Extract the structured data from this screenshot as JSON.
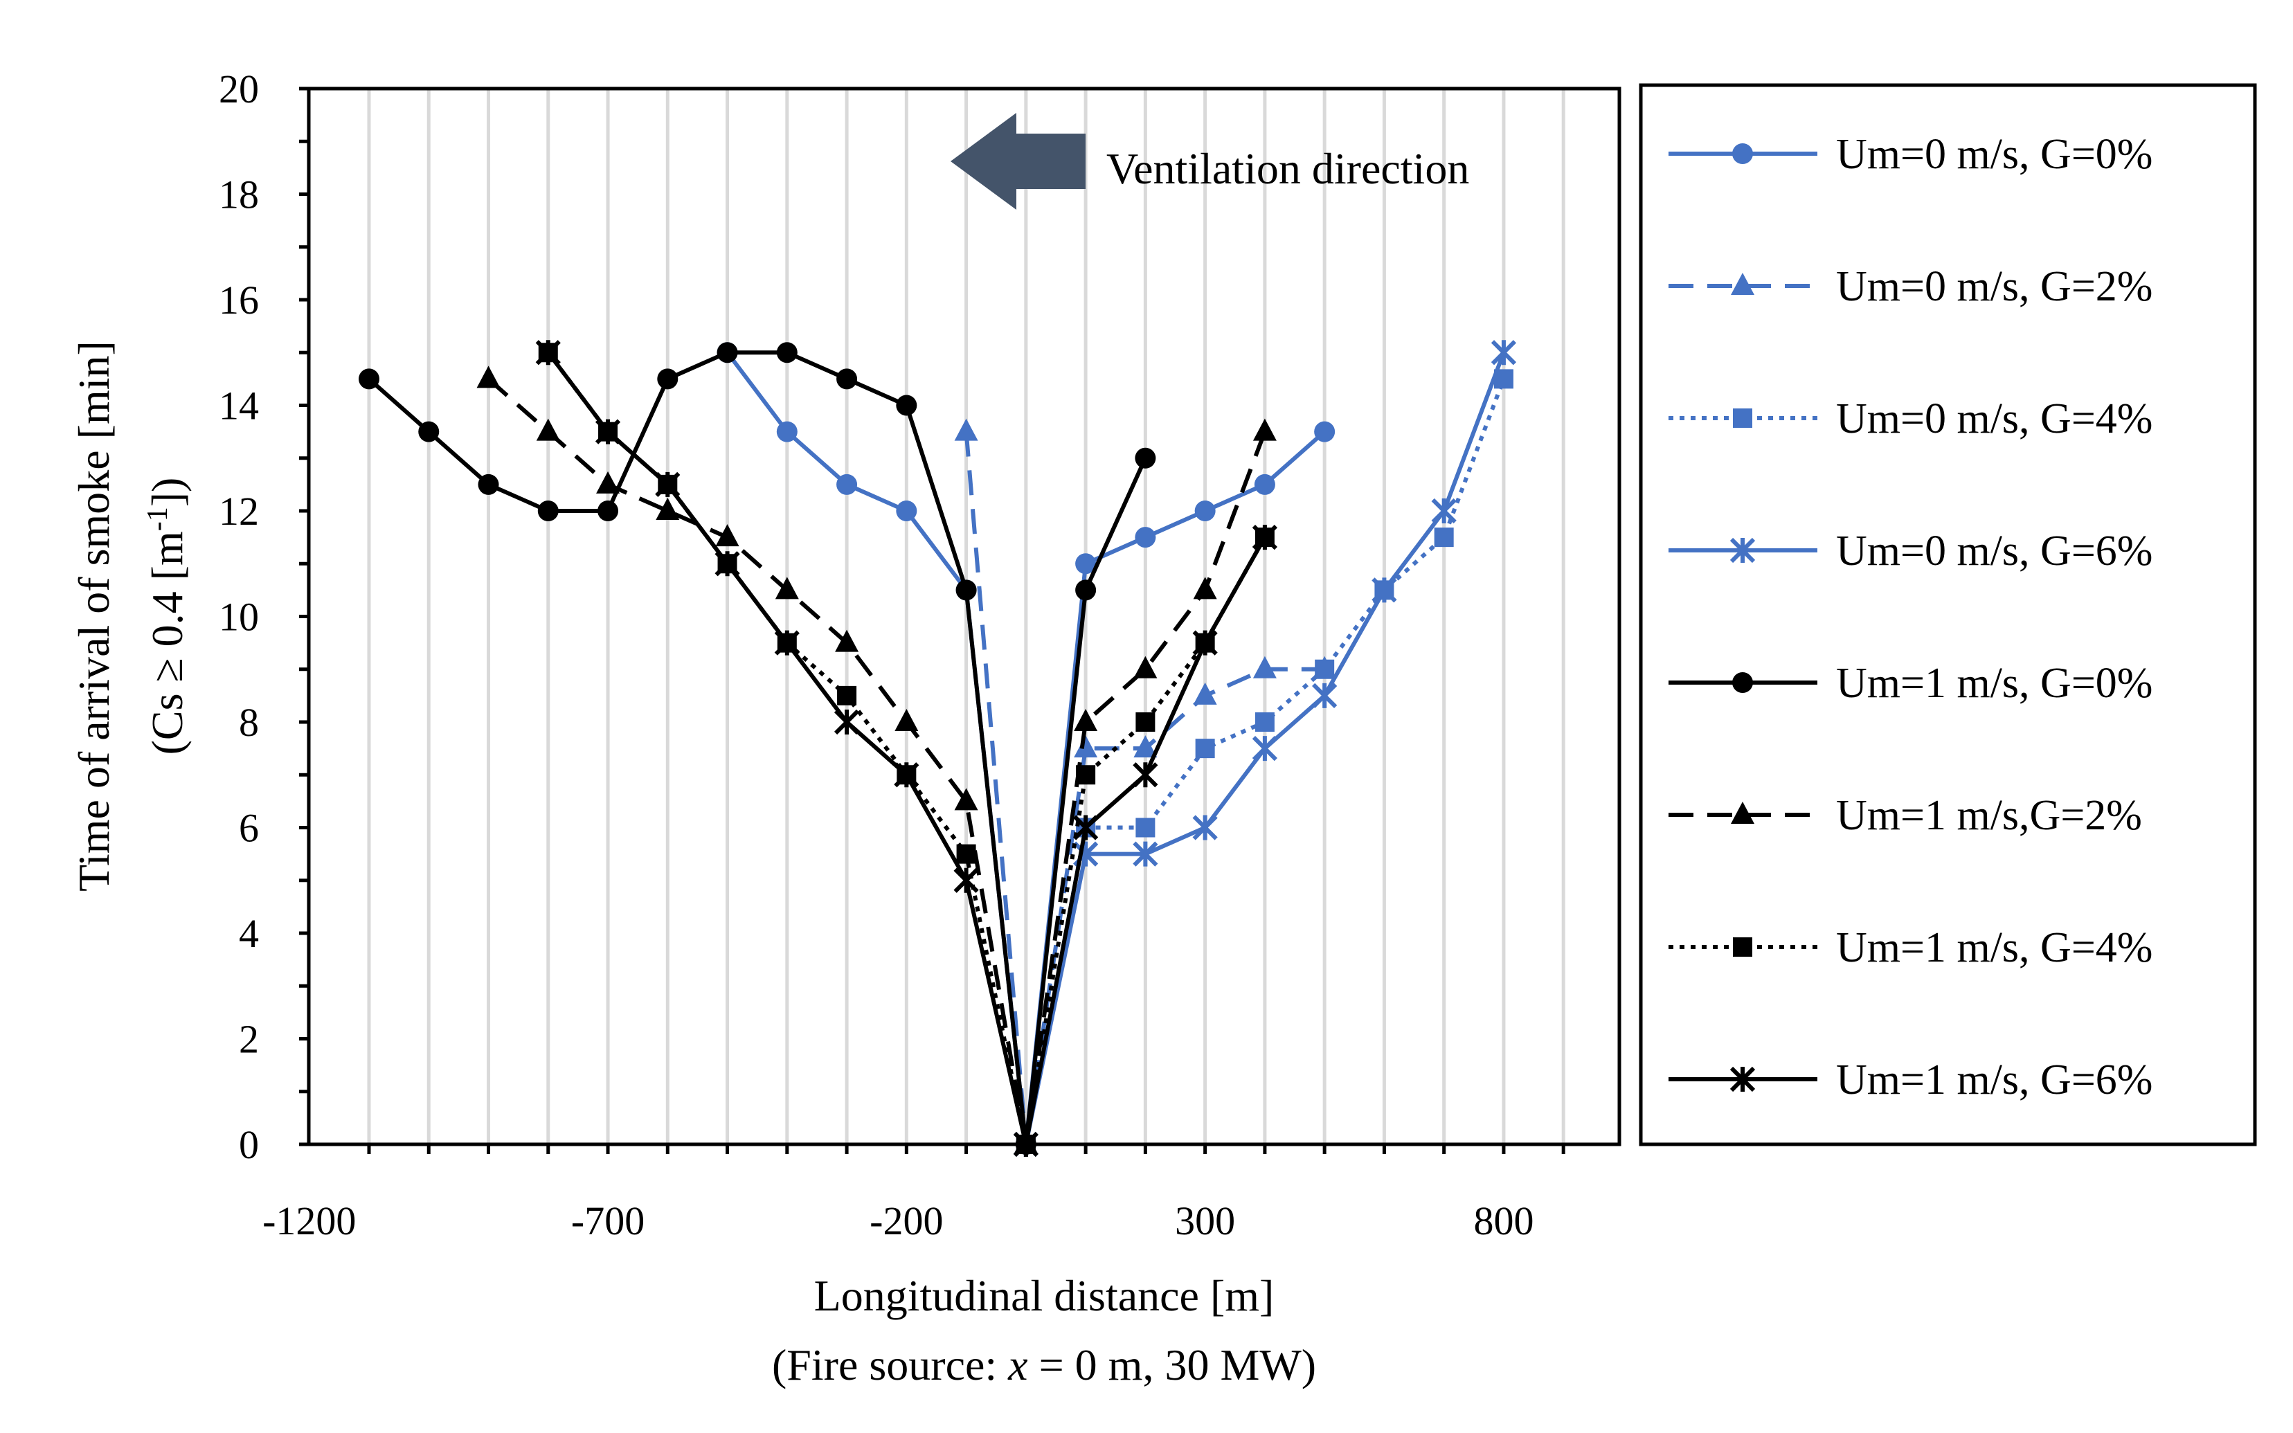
{
  "chart_data": {
    "type": "line",
    "title": "",
    "xlabel": "Longitudinal distance [m]",
    "xlabel2_prefix": "(Fire source: ",
    "xlabel2_var": "x",
    "xlabel2_suffix": " = 0 m, 30 MW)",
    "ylabel_line1": "Time of arrival of smoke [min]",
    "ylabel_line2_prefix": "(Cs ≥ 0.4 [m",
    "ylabel_line2_sup": "-1",
    "ylabel_line2_suffix": "])",
    "xlim": [
      -1200,
      1000
    ],
    "ylim": [
      0,
      20
    ],
    "xticks": [
      -1200,
      -700,
      -200,
      300,
      800
    ],
    "xtick_labels": [
      "-1200",
      "-700",
      "-200",
      "300",
      "800"
    ],
    "yticks": [
      0,
      2,
      4,
      6,
      8,
      10,
      12,
      14,
      16,
      18,
      20
    ],
    "ytick_labels": [
      "0",
      "2",
      "4",
      "6",
      "8",
      "10",
      "12",
      "14",
      "16",
      "18",
      "20"
    ],
    "grid": true,
    "legend_position": "right-outside",
    "annotation": "Ventilation direction",
    "annotation_arrow_color": "#44546a",
    "series": [
      {
        "name": "Um=0 m/s, G=0%",
        "color": "#4472c4",
        "marker": "circle",
        "dash": "solid",
        "x": [
          -500,
          -400,
          -300,
          -200,
          -100,
          0,
          100,
          200,
          300,
          400,
          500
        ],
        "y": [
          15,
          13.5,
          12.5,
          12,
          10.5,
          0,
          11,
          11.5,
          12,
          12.5,
          13.5
        ]
      },
      {
        "name": "Um=0 m/s, G=2%",
        "color": "#4472c4",
        "marker": "triangle",
        "dash": "dash",
        "x": [
          -100,
          0,
          100,
          200,
          300,
          400,
          500
        ],
        "y": [
          13.5,
          0,
          7.5,
          7.5,
          8.5,
          9,
          9
        ]
      },
      {
        "name": "Um=0 m/s, G=4%",
        "color": "#4472c4",
        "marker": "square",
        "dash": "dot",
        "x": [
          0,
          100,
          200,
          300,
          400,
          500,
          600,
          700,
          800
        ],
        "y": [
          0,
          6,
          6,
          7.5,
          8,
          9,
          10.5,
          11.5,
          14.5
        ]
      },
      {
        "name": "Um=0 m/s, G=6%",
        "color": "#4472c4",
        "marker": "star",
        "dash": "solid",
        "x": [
          0,
          100,
          200,
          300,
          400,
          500,
          600,
          700,
          800
        ],
        "y": [
          0,
          5.5,
          5.5,
          6,
          7.5,
          8.5,
          10.5,
          12,
          15
        ]
      },
      {
        "name": "Um=1 m/s, G=0%",
        "color": "#000000",
        "marker": "circle",
        "dash": "solid",
        "x": [
          -1100,
          -1000,
          -900,
          -800,
          -700,
          -600,
          -500,
          -400,
          -300,
          -200,
          -100,
          0,
          100,
          200
        ],
        "y": [
          14.5,
          13.5,
          12.5,
          12,
          12,
          14.5,
          15,
          15,
          14.5,
          14,
          10.5,
          0,
          10.5,
          13
        ]
      },
      {
        "name": "Um=1 m/s,G=2%",
        "color": "#000000",
        "marker": "triangle",
        "dash": "dash",
        "x": [
          -900,
          -800,
          -700,
          -600,
          -500,
          -400,
          -300,
          -200,
          -100,
          0,
          100,
          200,
          300,
          400
        ],
        "y": [
          14.5,
          13.5,
          12.5,
          12,
          11.5,
          10.5,
          9.5,
          8,
          6.5,
          0,
          8,
          9,
          10.5,
          13.5
        ]
      },
      {
        "name": "Um=1 m/s, G=4%",
        "color": "#000000",
        "marker": "square",
        "dash": "dot",
        "x": [
          -800,
          -700,
          -600,
          -500,
          -400,
          -300,
          -200,
          -100,
          0,
          100,
          200,
          300,
          400
        ],
        "y": [
          15,
          13.5,
          12.5,
          11,
          9.5,
          8.5,
          7,
          5.5,
          0,
          7,
          8,
          9.5,
          11.5
        ]
      },
      {
        "name": "Um=1 m/s, G=6%",
        "color": "#000000",
        "marker": "star",
        "dash": "solid",
        "x": [
          -800,
          -700,
          -600,
          -500,
          -400,
          -300,
          -200,
          -100,
          0,
          100,
          200,
          300,
          400
        ],
        "y": [
          15,
          13.5,
          12.5,
          11,
          9.5,
          8,
          7,
          5,
          0,
          6,
          7,
          9.5,
          11.5
        ]
      }
    ]
  }
}
